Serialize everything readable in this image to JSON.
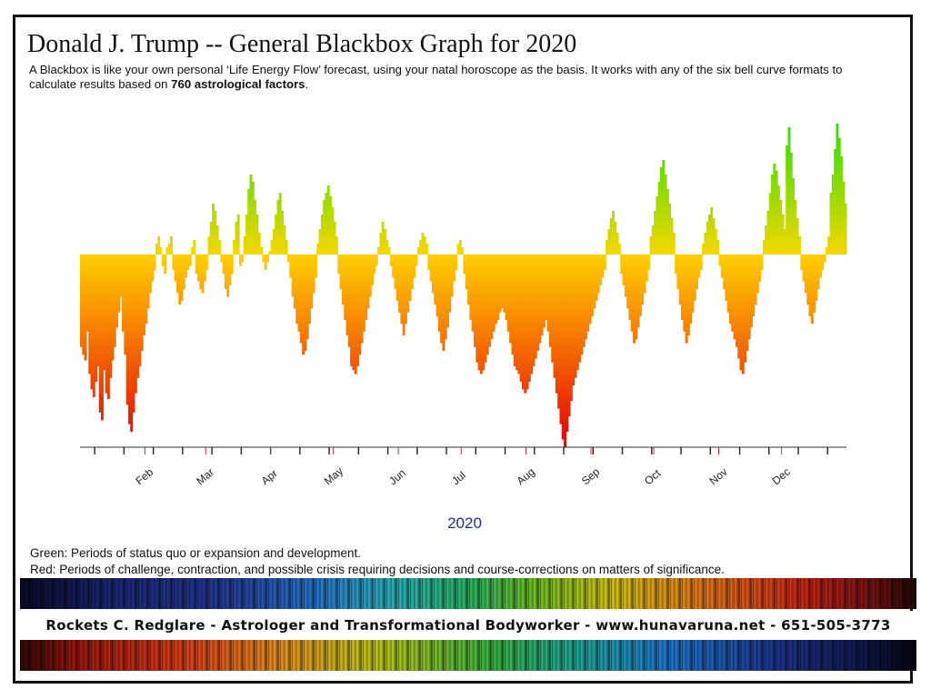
{
  "header": {
    "title": "Donald J. Trump -- General Blackbox Graph for 2020",
    "desc_part1": "A Blackbox is like your own personal ‘Life Energy Flow’ forecast, using your natal horoscope as the basis.  It works with any of the six bell curve formats to calculate results based on ",
    "desc_bold": "760 astrological factors",
    "desc_part2": "."
  },
  "chart_data": {
    "type": "bar",
    "xlabel": "2020",
    "months": [
      "Feb",
      "Mar",
      "Apr",
      "May",
      "Jun",
      "Jul",
      "Aug",
      "Sep",
      "Oct",
      "Nov",
      "Dec"
    ],
    "month_start_day": [
      31,
      60,
      91,
      121,
      152,
      182,
      213,
      244,
      274,
      305,
      335
    ],
    "days_in_year": 366,
    "ylim": [
      -100,
      75
    ],
    "colors": {
      "positive_low": "#f5d800",
      "positive_high": "#22dd00",
      "negative_low": "#ffd000",
      "negative_high": "#e80000"
    },
    "values": [
      -48,
      -52,
      -55,
      -40,
      -62,
      -70,
      -74,
      -66,
      -58,
      -82,
      -86,
      -60,
      -72,
      -75,
      -64,
      -55,
      -48,
      -38,
      -30,
      -22,
      -40,
      -52,
      -78,
      -88,
      -92,
      -82,
      -72,
      -64,
      -58,
      -50,
      -42,
      -36,
      -28,
      -20,
      -14,
      -8,
      6,
      10,
      4,
      -6,
      -10,
      4,
      6,
      10,
      -8,
      -14,
      -20,
      -26,
      -24,
      -18,
      -12,
      -8,
      -6,
      4,
      8,
      -10,
      -14,
      -18,
      -20,
      -14,
      -8,
      10,
      18,
      28,
      24,
      16,
      8,
      -4,
      -10,
      -18,
      -22,
      -16,
      -10,
      8,
      18,
      22,
      -6,
      -4,
      10,
      22,
      36,
      44,
      40,
      30,
      22,
      12,
      4,
      -4,
      -8,
      -4,
      2,
      8,
      14,
      22,
      30,
      34,
      24,
      16,
      8,
      -4,
      -12,
      -22,
      -28,
      -36,
      -40,
      -46,
      -52,
      -50,
      -44,
      -36,
      -28,
      -20,
      -12,
      6,
      14,
      22,
      30,
      34,
      38,
      32,
      26,
      18,
      10,
      -10,
      -18,
      -26,
      -34,
      -42,
      -48,
      -58,
      -60,
      -62,
      -58,
      -52,
      -46,
      -40,
      -34,
      -28,
      -22,
      -16,
      -10,
      -6,
      4,
      12,
      18,
      14,
      8,
      4,
      -6,
      -12,
      -18,
      -24,
      -30,
      -36,
      -42,
      -36,
      -30,
      -24,
      -18,
      -12,
      -6,
      4,
      8,
      12,
      10,
      6,
      -8,
      -14,
      -20,
      -26,
      -32,
      -40,
      -46,
      -50,
      -44,
      -38,
      -30,
      -22,
      -14,
      -8,
      6,
      8,
      4,
      -10,
      -18,
      -26,
      -34,
      -40,
      -48,
      -56,
      -60,
      -62,
      -60,
      -56,
      -52,
      -48,
      -44,
      -40,
      -36,
      -34,
      -30,
      -28,
      -30,
      -34,
      -40,
      -46,
      -52,
      -58,
      -60,
      -62,
      -66,
      -70,
      -72,
      -70,
      -66,
      -62,
      -58,
      -54,
      -50,
      -46,
      -42,
      -38,
      -34,
      -40,
      -48,
      -56,
      -64,
      -72,
      -80,
      -88,
      -96,
      -100,
      -92,
      -84,
      -76,
      -68,
      -64,
      -60,
      -56,
      -52,
      -48,
      -44,
      -40,
      -36,
      -32,
      -28,
      -24,
      -20,
      -16,
      -12,
      -8,
      8,
      14,
      20,
      24,
      18,
      12,
      6,
      -10,
      -16,
      -22,
      -28,
      -34,
      -40,
      -46,
      -44,
      -38,
      -32,
      -26,
      -20,
      -14,
      -8,
      10,
      16,
      24,
      32,
      40,
      48,
      52,
      44,
      36,
      28,
      20,
      12,
      -10,
      -18,
      -26,
      -34,
      -40,
      -46,
      -42,
      -36,
      -30,
      -24,
      -18,
      -12,
      -8,
      6,
      12,
      18,
      22,
      26,
      20,
      14,
      8,
      -6,
      -12,
      -18,
      -24,
      -30,
      -36,
      -40,
      -44,
      -48,
      -54,
      -60,
      -62,
      -56,
      -50,
      -44,
      -38,
      -32,
      -26,
      -20,
      -14,
      -8,
      8,
      16,
      24,
      34,
      44,
      50,
      46,
      38,
      30,
      22,
      14,
      60,
      70,
      56,
      42,
      30,
      20,
      10,
      -8,
      -14,
      -20,
      -26,
      -32,
      -36,
      -30,
      -24,
      -18,
      -12,
      -8,
      -4,
      4,
      10,
      34,
      44,
      58,
      72,
      64,
      54,
      40,
      28
    ]
  },
  "legend": {
    "green": "Green:  Periods of status quo or expansion and development.",
    "red": "Red:  Periods of challenge, contraction, and possible crisis requiring decisions and course-corrections on matters of significance."
  },
  "footer": {
    "signature": "Rockets C. Redglare  -  Astrologer and Transformational Bodyworker  -  www.hunavaruna.net  -  651-505-3773"
  }
}
